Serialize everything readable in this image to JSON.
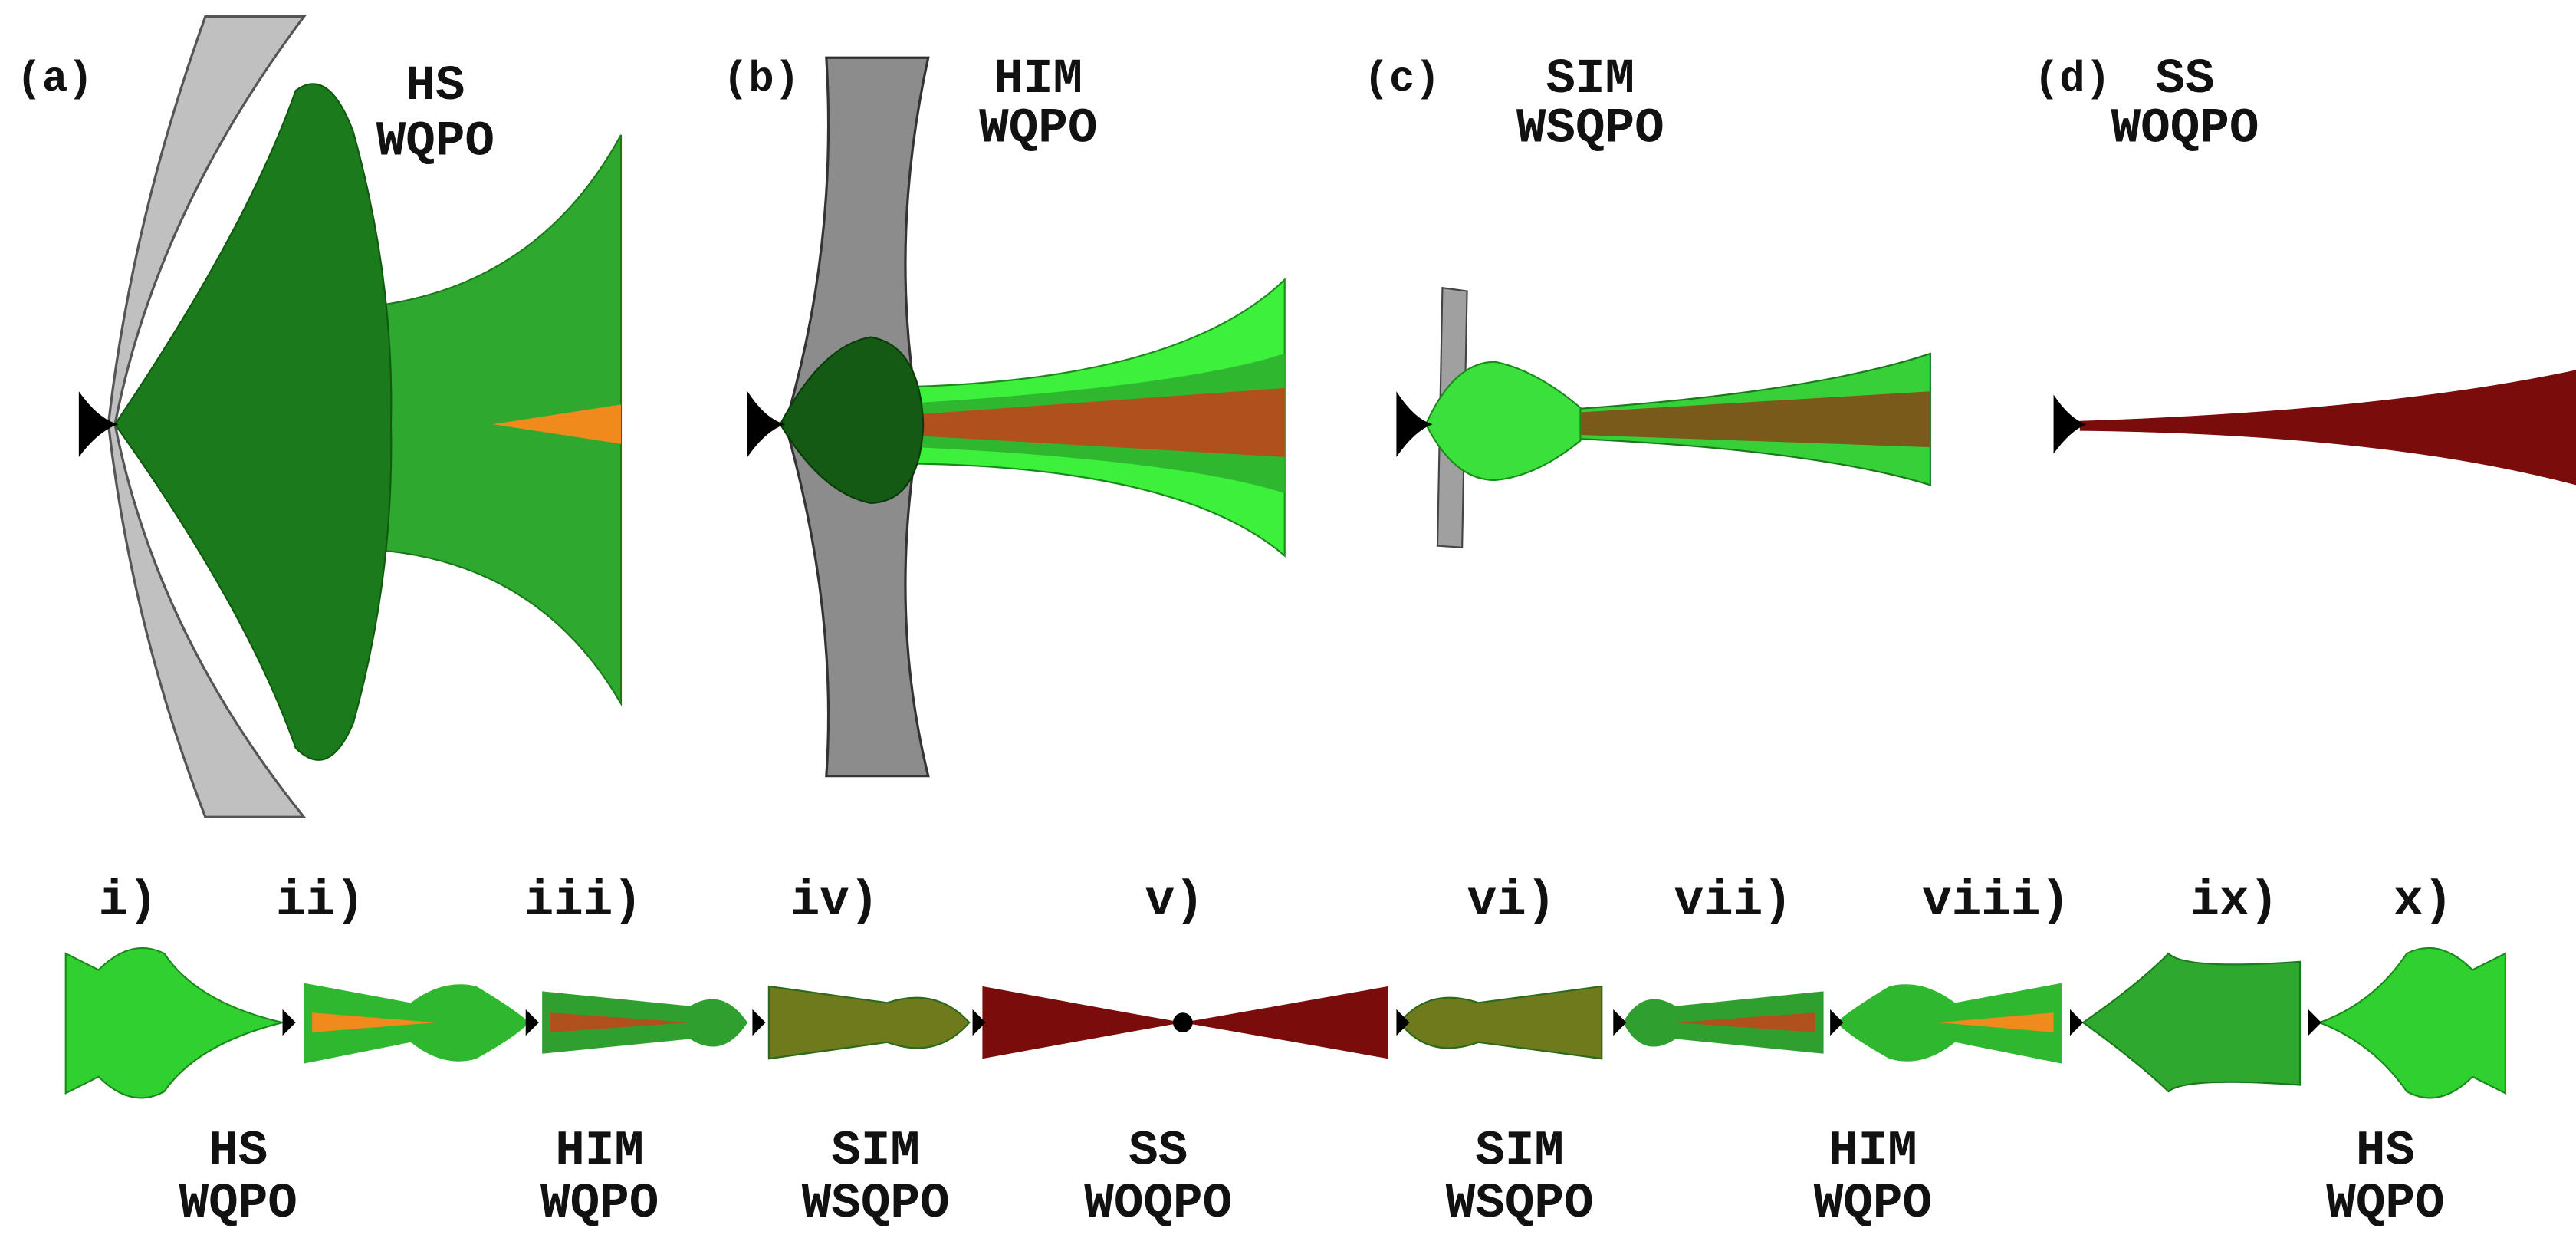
{
  "panels": [
    {
      "label": "(a)",
      "state": "HS",
      "qpo": "WQPO"
    },
    {
      "label": "(b)",
      "state": "HIM",
      "qpo": "WQPO"
    },
    {
      "label": "(c)",
      "state": "SIM",
      "qpo": "WSQPO"
    },
    {
      "label": "(d)",
      "state": "SS",
      "qpo": "WOQPO"
    }
  ],
  "sequence": {
    "markers": [
      "i)",
      "ii)",
      "iii)",
      "iv)",
      "v)",
      "vi)",
      "vii)",
      "viii)",
      "ix)",
      "x)"
    ],
    "states": [
      {
        "state": "HS",
        "qpo": "WQPO"
      },
      {
        "state": "HIM",
        "qpo": "WQPO"
      },
      {
        "state": "SIM",
        "qpo": "WSQPO"
      },
      {
        "state": "SS",
        "qpo": "WOQPO"
      },
      {
        "state": "SIM",
        "qpo": "WSQPO"
      },
      {
        "state": "HIM",
        "qpo": "WQPO"
      },
      {
        "state": "HS",
        "qpo": "WQPO"
      }
    ]
  }
}
